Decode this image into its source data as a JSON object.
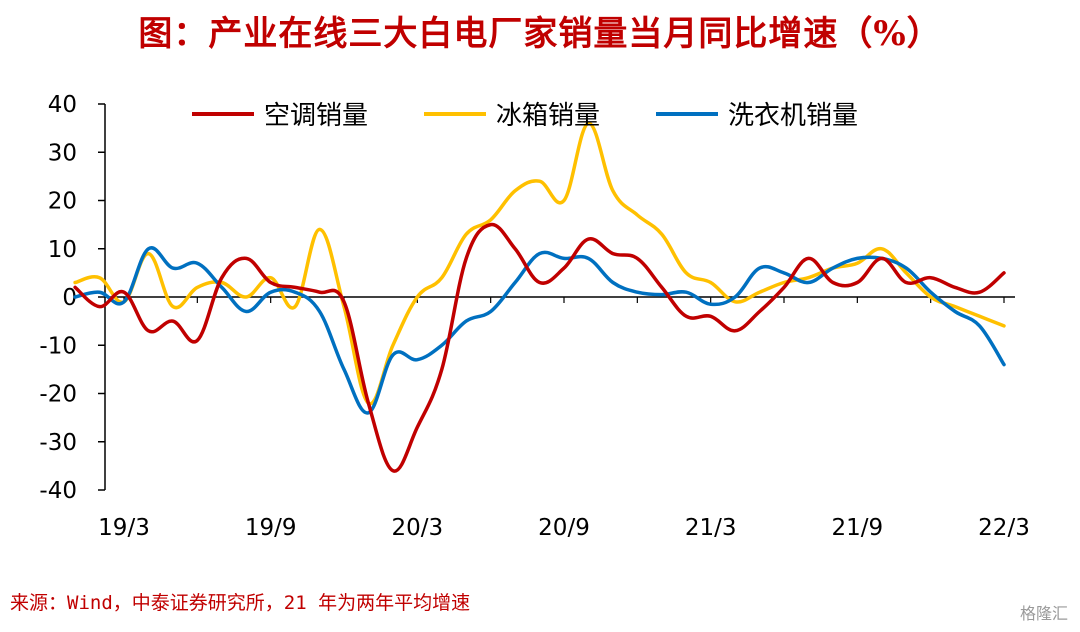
{
  "title": "图：产业在线三大白电厂家销量当月同比增速（%）",
  "source": "来源：Wind，中泰证券研究所，21 年为两年平均增速",
  "watermark": "格隆汇",
  "chart_data": {
    "type": "line",
    "title": "图：产业在线三大白电厂家销量当月同比增速（%）",
    "xlabel": "",
    "ylabel": "",
    "ylim": [
      -40,
      40
    ],
    "yticks": [
      40,
      30,
      20,
      10,
      0,
      -10,
      -20,
      -30,
      -40
    ],
    "x_tick_labels": [
      "19/3",
      "19/9",
      "20/3",
      "20/9",
      "21/3",
      "21/9",
      "22/3"
    ],
    "x": [
      "19/1",
      "19/2",
      "19/3",
      "19/4",
      "19/5",
      "19/6",
      "19/7",
      "19/8",
      "19/9",
      "19/10",
      "19/11",
      "19/12",
      "20/1",
      "20/2",
      "20/3",
      "20/4",
      "20/5",
      "20/6",
      "20/7",
      "20/8",
      "20/9",
      "20/10",
      "20/11",
      "20/12",
      "21/1",
      "21/2",
      "21/3",
      "21/4",
      "21/5",
      "21/6",
      "21/7",
      "21/8",
      "21/9",
      "21/10",
      "21/11",
      "21/12",
      "22/1",
      "22/2",
      "22/3"
    ],
    "grid": false,
    "legend_position": "top",
    "series": [
      {
        "name": "空调销量",
        "color": "#c00000",
        "values": [
          2,
          -2,
          1,
          -7,
          -5,
          -9,
          4,
          8,
          3,
          2,
          1,
          -1,
          -22,
          -36,
          -27,
          -15,
          8,
          15,
          10,
          3,
          6,
          12,
          9,
          8,
          2,
          -4,
          -4,
          -7,
          -3,
          2,
          8,
          3,
          3,
          8,
          3,
          4,
          2,
          1,
          5
        ]
      },
      {
        "name": "冰箱销量",
        "color": "#ffc000",
        "values": [
          3,
          4,
          -1,
          9,
          -2,
          2,
          3,
          0,
          4,
          -2,
          14,
          -2,
          -22,
          -10,
          0,
          4,
          13,
          16,
          22,
          24,
          20,
          36,
          22,
          17,
          13,
          5,
          3,
          -1,
          1,
          3,
          4,
          6,
          7,
          10,
          5,
          0,
          -2,
          -4,
          -6
        ]
      },
      {
        "name": "洗衣机销量",
        "color": "#0070c0",
        "values": [
          0,
          1,
          -1,
          10,
          6,
          7,
          2,
          -3,
          1,
          1,
          -3,
          -15,
          -24,
          -12,
          -13,
          -10,
          -5,
          -3,
          3,
          9,
          8,
          8,
          3,
          1,
          0.5,
          1,
          -1.5,
          0,
          6,
          5,
          3,
          6,
          8,
          8,
          6,
          1,
          -3,
          -6,
          -14
        ]
      }
    ]
  }
}
